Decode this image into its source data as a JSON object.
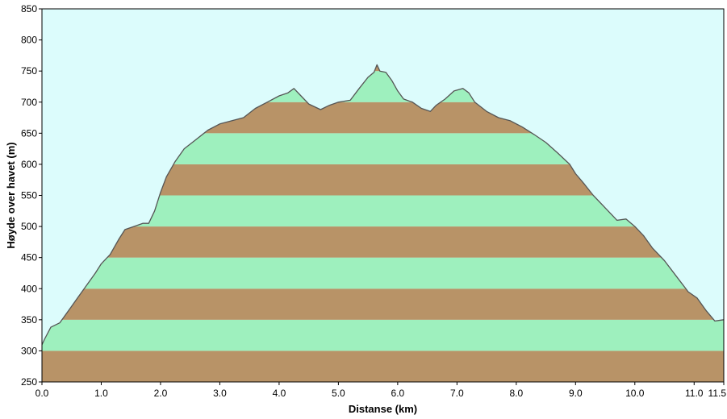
{
  "chart_data": {
    "type": "area",
    "title": "",
    "xlabel": "Distanse  (km)",
    "ylabel": "Høyde over havet (m)",
    "xlim": [
      0,
      11.5
    ],
    "ylim": [
      250,
      850
    ],
    "x_ticks": [
      "0.0",
      "1.0",
      "2.0",
      "3.0",
      "4.0",
      "5.0",
      "6.0",
      "7.0",
      "8.0",
      "9.0",
      "10.0",
      "11.0",
      "11.5"
    ],
    "x_tick_values": [
      0,
      1,
      2,
      3,
      4,
      5,
      6,
      7,
      8,
      9,
      10,
      11,
      11.5
    ],
    "y_ticks": [
      "250",
      "300",
      "350",
      "400",
      "450",
      "500",
      "550",
      "600",
      "650",
      "700",
      "750",
      "800",
      "850"
    ],
    "y_tick_values": [
      250,
      300,
      350,
      400,
      450,
      500,
      550,
      600,
      650,
      700,
      750,
      800,
      850
    ],
    "grid": false,
    "band_step": 50,
    "colors": {
      "sky": "#dcfcfc",
      "band_brown": "#b89367",
      "band_green": "#9ef0be",
      "line": "#555555",
      "frame": "#000000"
    },
    "series": [
      {
        "x": [
          0,
          0.05,
          0.15,
          0.3,
          0.45,
          0.6,
          0.75,
          0.9,
          1.0,
          1.15,
          1.3,
          1.4,
          1.55,
          1.7,
          1.8,
          1.9,
          2.0,
          2.1,
          2.25,
          2.4,
          2.6,
          2.8,
          3.0,
          3.2,
          3.4,
          3.6,
          3.8,
          4.0,
          4.15,
          4.25,
          4.35,
          4.5,
          4.7,
          4.85,
          5.0,
          5.2,
          5.35,
          5.5,
          5.6,
          5.65,
          5.7,
          5.8,
          5.9,
          6.0,
          6.1,
          6.25,
          6.4,
          6.55,
          6.65,
          6.8,
          6.95,
          7.1,
          7.2,
          7.3,
          7.5,
          7.7,
          7.9,
          8.1,
          8.3,
          8.5,
          8.7,
          8.9,
          9.0,
          9.15,
          9.3,
          9.5,
          9.7,
          9.85,
          10.0,
          10.15,
          10.3,
          10.5,
          10.7,
          10.9,
          11.05,
          11.2,
          11.35,
          11.5
        ],
        "y": [
          310,
          320,
          338,
          345,
          365,
          385,
          405,
          425,
          440,
          455,
          480,
          495,
          500,
          505,
          505,
          525,
          555,
          580,
          605,
          625,
          640,
          655,
          665,
          670,
          675,
          690,
          700,
          710,
          715,
          722,
          712,
          697,
          688,
          695,
          700,
          703,
          722,
          740,
          748,
          760,
          750,
          748,
          735,
          718,
          705,
          700,
          690,
          685,
          695,
          705,
          718,
          722,
          715,
          700,
          685,
          675,
          670,
          660,
          648,
          635,
          618,
          600,
          585,
          568,
          550,
          530,
          510,
          512,
          500,
          485,
          465,
          445,
          420,
          395,
          385,
          365,
          348,
          350
        ]
      }
    ]
  }
}
